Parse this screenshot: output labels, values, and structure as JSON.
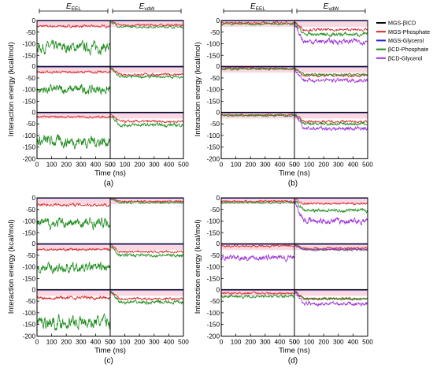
{
  "chart_data": [
    {
      "type": "line",
      "panel_label": "(a)",
      "header": [
        "EEEL",
        "EvdW"
      ],
      "header_display": [
        {
          "main": "E",
          "sub": "EEL"
        },
        {
          "main": "E",
          "sub": "vdW"
        }
      ],
      "xlabel": "Time (ns)",
      "ylabel": "Interaction energy (kcal/mol)",
      "xlim": [
        0,
        500
      ],
      "ylim": [
        -200,
        0
      ],
      "xticks": [
        "0",
        "100",
        "200",
        "300",
        "400",
        "500"
      ],
      "yticks": [
        "0",
        "-50",
        "-100",
        "-150",
        "-200"
      ],
      "rows": [
        {
          "eel": {
            "MGS-Phosphate": -25,
            "βCD-Phosphate": -115
          },
          "vdw": {
            "MGS-Phosphate": -20,
            "βCD-Phosphate": -28
          }
        },
        {
          "eel": {
            "MGS-Phosphate": -25,
            "βCD-Phosphate": -100
          },
          "vdw": {
            "MGS-Phosphate": -35,
            "βCD-Phosphate": -45
          }
        },
        {
          "eel": {
            "MGS-Phosphate": -20,
            "βCD-Phosphate": -125
          },
          "vdw": {
            "MGS-Phosphate": -40,
            "βCD-Phosphate": -55
          }
        }
      ]
    },
    {
      "type": "line",
      "panel_label": "(b)",
      "header": [
        "EEEL",
        "EvdW"
      ],
      "header_display": [
        {
          "main": "E",
          "sub": "EEL"
        },
        {
          "main": "E",
          "sub": "vdW"
        }
      ],
      "xlabel": "Time (ns)",
      "ylabel": "Interaction energy (kcal/mol)",
      "xlim": [
        0,
        500
      ],
      "ylim": [
        -200,
        0
      ],
      "xticks": [
        "0",
        "100",
        "200",
        "300",
        "400",
        "500"
      ],
      "yticks": [
        "0",
        "-50",
        "-100",
        "-150",
        "-200"
      ],
      "rows": [
        {
          "eel": {
            "MGS-Phosphate": -10,
            "βCD-Phosphate": -15
          },
          "vdw": {
            "MGS-Phosphate": -40,
            "βCD-Phosphate": -60,
            "βCD-Glycerol": -90
          }
        },
        {
          "eel": {
            "MGS-Phosphate": -8,
            "βCD-Phosphate": -12
          },
          "vdw": {
            "MGS-Phosphate": -40,
            "βCD-Phosphate": -35,
            "βCD-Glycerol": -60
          }
        },
        {
          "eel": {
            "MGS-Phosphate": -12,
            "βCD-Phosphate": -15
          },
          "vdw": {
            "MGS-Phosphate": -40,
            "βCD-Phosphate": -50,
            "βCD-Glycerol": -70
          }
        }
      ]
    },
    {
      "type": "line",
      "panel_label": "(c)",
      "xlabel": "Time (ns)",
      "ylabel": "Interaction energy (kcal/mol)",
      "xlim": [
        0,
        500
      ],
      "ylim": [
        -200,
        0
      ],
      "xticks": [
        "0",
        "100",
        "200",
        "300",
        "400",
        "500"
      ],
      "yticks": [
        "0",
        "-50",
        "-100",
        "-150",
        "-200"
      ],
      "rows": [
        {
          "eel": {
            "MGS-Phosphate": -30,
            "βCD-Phosphate": -110
          },
          "vdw": {
            "MGS-Phosphate": -15,
            "βCD-Phosphate": -20
          }
        },
        {
          "eel": {
            "MGS-Phosphate": -25,
            "βCD-Phosphate": -105
          },
          "vdw": {
            "MGS-Phosphate": -35,
            "βCD-Phosphate": -50
          }
        },
        {
          "eel": {
            "MGS-Phosphate": -35,
            "βCD-Phosphate": -140
          },
          "vdw": {
            "MGS-Phosphate": -40,
            "βCD-Phosphate": -55
          }
        }
      ]
    },
    {
      "type": "line",
      "panel_label": "(d)",
      "xlabel": "Time (ns)",
      "ylabel": "Interaction energy (kcal/mol)",
      "xlim": [
        0,
        500
      ],
      "ylim": [
        -200,
        0
      ],
      "xticks": [
        "0",
        "100",
        "200",
        "300",
        "400",
        "500"
      ],
      "yticks": [
        "0",
        "-50",
        "-100",
        "-150",
        "-200"
      ],
      "rows": [
        {
          "eel": {
            "MGS-Phosphate": -15,
            "βCD-Phosphate": -20
          },
          "vdw": {
            "MGS-Phosphate": -25,
            "βCD-Phosphate": -55,
            "βCD-Glycerol": -100
          }
        },
        {
          "eel": {
            "MGS-Phosphate": -10,
            "βCD-Glycerol": -60
          },
          "vdw": {
            "MGS-Phosphate": -20,
            "βCD-Phosphate": -25,
            "βCD-Glycerol": -25
          }
        },
        {
          "eel": {
            "MGS-Phosphate": -15,
            "βCD-Phosphate": -30
          },
          "vdw": {
            "MGS-Phosphate": -40,
            "βCD-Phosphate": -40,
            "βCD-Glycerol": -60
          }
        }
      ]
    }
  ],
  "legend": {
    "placement": "top-right",
    "entries": [
      {
        "name": "MGS-βICD",
        "color": "#000000"
      },
      {
        "name": "MGS-Phosphate",
        "color": "#d62728"
      },
      {
        "name": "MGS-Glycerol",
        "color": "#1f1fd6"
      },
      {
        "name": "βCD-Phosphate",
        "color": "#1e8c1e"
      },
      {
        "name": "βCD-Glycerol",
        "color": "#9b30d6"
      }
    ]
  },
  "colors": {
    "MGS-βICD": "#000000",
    "MGS-Phosphate": "#d62728",
    "MGS-Glycerol": "#1f1fd6",
    "βCD-Phosphate": "#1e8c1e",
    "βCD-Glycerol": "#9b30d6",
    "fluctuation-band": "#f5b8c8"
  }
}
